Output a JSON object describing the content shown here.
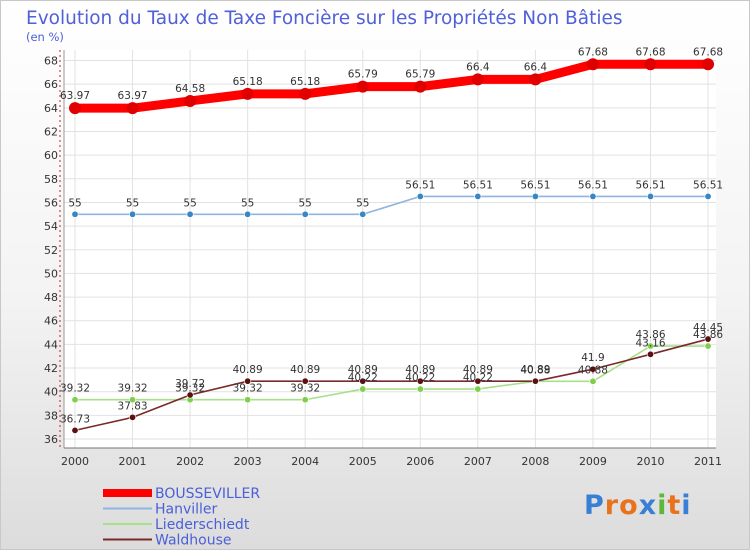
{
  "chart_data": {
    "type": "line",
    "title": "Evolution du Taux de Taxe Foncière sur les Propriétés Non Bâties",
    "subtitle": "(en %)",
    "x": [
      "2000",
      "2001",
      "2002",
      "2003",
      "2004",
      "2005",
      "2006",
      "2007",
      "2008",
      "2009",
      "2010",
      "2011"
    ],
    "ylim": [
      36,
      68
    ],
    "yticks": [
      36,
      38,
      40,
      42,
      44,
      46,
      48,
      50,
      52,
      54,
      56,
      58,
      60,
      62,
      64,
      66,
      68
    ],
    "series": [
      {
        "name": "BOUSSEVILLER",
        "color": "#ff0000",
        "marker": "#e00000",
        "values": [
          63.97,
          63.97,
          64.58,
          65.18,
          65.18,
          65.79,
          65.79,
          66.4,
          66.4,
          67.68,
          67.68,
          67.68
        ],
        "labels": [
          "63.97",
          "63.97",
          "64.58",
          "65.18",
          "65.18",
          "65.79",
          "65.79",
          "66.4",
          "66.4",
          "67.68",
          "67.68",
          "67.68"
        ]
      },
      {
        "name": "Hanviller",
        "color": "#8db4e2",
        "marker": "#3a85c6",
        "values": [
          55,
          55,
          55,
          55,
          55,
          55,
          56.51,
          56.51,
          56.51,
          56.51,
          56.51,
          56.51
        ],
        "labels": [
          "55",
          "55",
          "55",
          "55",
          "55",
          "55",
          "56.51",
          "56.51",
          "56.51",
          "56.51",
          "56.51",
          "56.51"
        ]
      },
      {
        "name": "Liederschiedt",
        "color": "#a6e08a",
        "marker": "#7ed04a",
        "values": [
          39.32,
          39.32,
          39.32,
          39.32,
          39.32,
          40.22,
          40.22,
          40.22,
          40.88,
          40.88,
          43.86,
          43.86
        ],
        "labels": [
          "39.32",
          "39.32",
          "39.32",
          "39.32",
          "39.32",
          "40.22",
          "40.22",
          "40.22",
          "40.88",
          "40.88",
          "43.86",
          "43.86"
        ]
      },
      {
        "name": "Waldhouse",
        "color": "#7a2a2a",
        "marker": "#5a1010",
        "values": [
          36.73,
          37.83,
          39.72,
          40.89,
          40.89,
          40.89,
          40.89,
          40.89,
          40.89,
          41.9,
          43.16,
          44.45
        ],
        "labels": [
          "36.73",
          "37.83",
          "39.72",
          "40.89",
          "40.89",
          "40.89",
          "40.89",
          "40.89",
          "40.89",
          "41.9",
          "43.16",
          "44.45"
        ]
      }
    ]
  },
  "legend": {
    "text_color": "#4a5fd8"
  },
  "logo": {
    "text": "Proxiti",
    "letters": [
      "P",
      "r",
      "o",
      "x",
      "i",
      "t",
      "i"
    ],
    "colors": [
      "#3a7fd6",
      "#e8731c",
      "#e8731c",
      "#3a7fd6",
      "#5bb83a",
      "#e8731c",
      "#3a7fd6"
    ]
  }
}
